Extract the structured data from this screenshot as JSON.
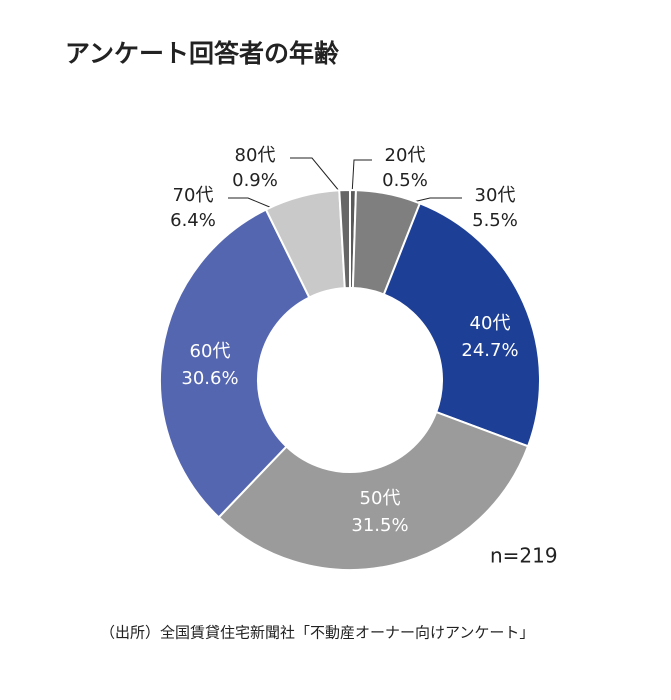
{
  "chart_data": {
    "type": "donut",
    "title": "アンケート回答者の年齢",
    "categories": [
      "20代",
      "30代",
      "40代",
      "50代",
      "60代",
      "70代",
      "80代"
    ],
    "values": [
      0.5,
      5.5,
      24.7,
      31.5,
      30.6,
      6.4,
      0.9
    ],
    "value_labels": [
      "0.5%",
      "5.5%",
      "24.7%",
      "31.5%",
      "30.6%",
      "6.4%",
      "0.9%"
    ],
    "colors": [
      "#5a5a5a",
      "#7f7f7f",
      "#1d3f96",
      "#9b9b9b",
      "#5566b1",
      "#c9c9c9",
      "#666666"
    ],
    "note": "n=219",
    "source": "（出所）全国賃貸住宅新聞社「不動産オーナー向けアンケート」"
  }
}
